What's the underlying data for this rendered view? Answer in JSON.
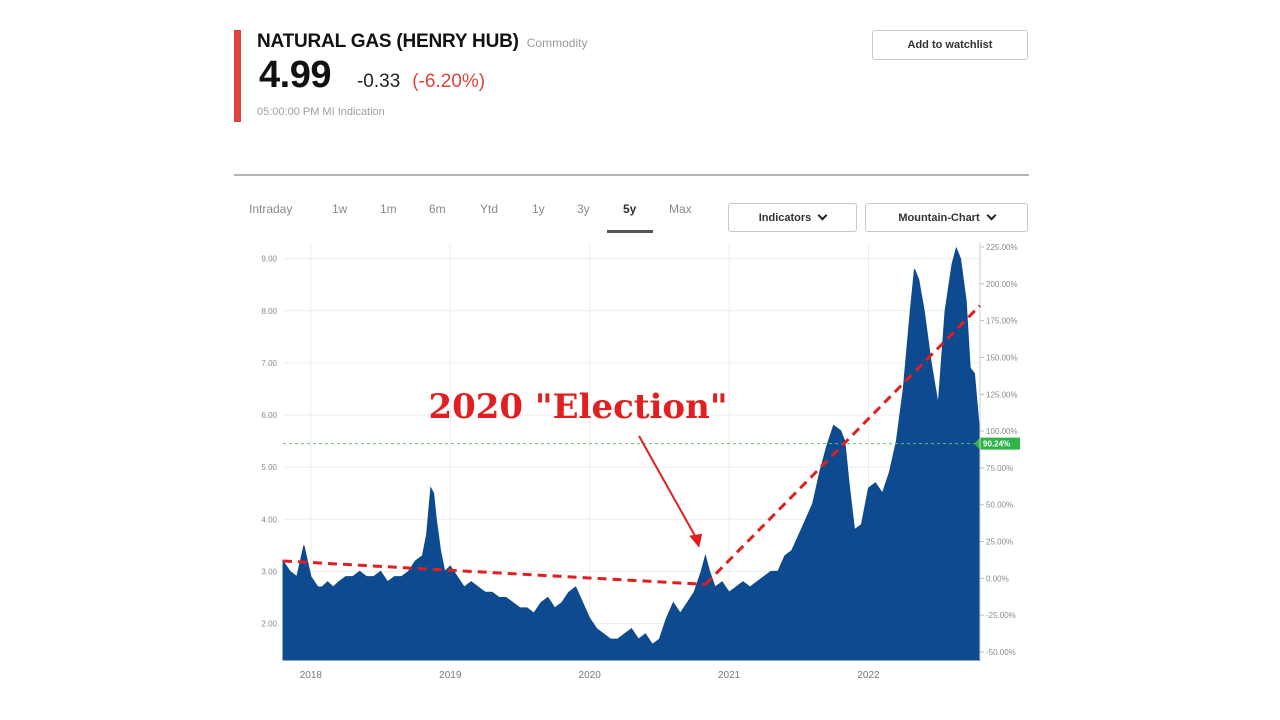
{
  "quote": {
    "title": "NATURAL GAS (HENRY HUB)",
    "category": "Commodity",
    "price": "4.99",
    "change": "-0.33",
    "change_pct": "(-6.20%)",
    "timestamp": "05:00:00 PM  MI Indication"
  },
  "watchlist_label": "Add to watchlist",
  "range_tabs": [
    {
      "label": "Intraday",
      "active": false
    },
    {
      "label": "1w",
      "active": false
    },
    {
      "label": "1m",
      "active": false
    },
    {
      "label": "6m",
      "active": false
    },
    {
      "label": "Ytd",
      "active": false
    },
    {
      "label": "1y",
      "active": false
    },
    {
      "label": "3y",
      "active": false
    },
    {
      "label": "5y",
      "active": true
    },
    {
      "label": "Max",
      "active": false
    }
  ],
  "indicators_label": "Indicators",
  "chart_type_label": "Mountain-Chart",
  "colors": {
    "accent": "#e0433b",
    "area_fill": "#0d4a8f",
    "trend_line": "#e02020",
    "reference_line": "#5fc07a",
    "badge": "#2fb34a"
  },
  "chart_data": {
    "type": "area",
    "title": "",
    "xlabel": "",
    "ylabel": "",
    "x_ticks": [
      "2018",
      "2019",
      "2020",
      "2021",
      "2022"
    ],
    "y_ticks_left": [
      "9.00",
      "8.00",
      "7.00",
      "6.00",
      "5.00",
      "4.00",
      "3.00",
      "2.00"
    ],
    "y_ticks_right": [
      "225.00%",
      "200.00%",
      "175.00%",
      "150.00%",
      "125.00%",
      "100.00%",
      "75.00%",
      "50.00%",
      "25.00%",
      "0.00%",
      "-25.00%",
      "-50.00%"
    ],
    "ylim": [
      1.3,
      9.3
    ],
    "grid": true,
    "reference_label": "90.24%",
    "reference_value": 5.45,
    "series": [
      {
        "x": [
          2017.8,
          2017.85,
          2017.9,
          2017.95,
          2018.0,
          2018.05,
          2018.08,
          2018.12,
          2018.16,
          2018.2,
          2018.25,
          2018.3,
          2018.35,
          2018.4,
          2018.45,
          2018.5,
          2018.55,
          2018.6,
          2018.65,
          2018.7,
          2018.75,
          2018.8,
          2018.83,
          2018.86,
          2018.88,
          2018.9,
          2018.93,
          2018.96,
          2019.0,
          2019.05,
          2019.1,
          2019.15,
          2019.2,
          2019.25,
          2019.3,
          2019.35,
          2019.4,
          2019.45,
          2019.5,
          2019.55,
          2019.6,
          2019.65,
          2019.7,
          2019.75,
          2019.8,
          2019.85,
          2019.9,
          2019.95,
          2020.0,
          2020.05,
          2020.1,
          2020.15,
          2020.2,
          2020.25,
          2020.3,
          2020.35,
          2020.4,
          2020.45,
          2020.5,
          2020.55,
          2020.6,
          2020.65,
          2020.7,
          2020.75,
          2020.8,
          2020.83,
          2020.86,
          2020.9,
          2020.95,
          2021.0,
          2021.05,
          2021.1,
          2021.15,
          2021.2,
          2021.25,
          2021.3,
          2021.35,
          2021.4,
          2021.45,
          2021.5,
          2021.55,
          2021.6,
          2021.65,
          2021.7,
          2021.75,
          2021.8,
          2021.83,
          2021.86,
          2021.9,
          2021.95,
          2022.0,
          2022.05,
          2022.1,
          2022.15,
          2022.2,
          2022.25,
          2022.3,
          2022.33,
          2022.36,
          2022.4,
          2022.45,
          2022.5,
          2022.55,
          2022.6,
          2022.63,
          2022.66,
          2022.7,
          2022.73,
          2022.76,
          2022.8
        ],
        "values": [
          3.2,
          3.0,
          2.9,
          3.5,
          2.9,
          2.7,
          2.7,
          2.8,
          2.7,
          2.8,
          2.9,
          2.9,
          3.0,
          2.9,
          2.9,
          3.0,
          2.8,
          2.9,
          2.9,
          3.0,
          3.2,
          3.3,
          3.7,
          4.6,
          4.5,
          4.0,
          3.4,
          3.0,
          3.1,
          2.9,
          2.7,
          2.8,
          2.7,
          2.6,
          2.6,
          2.5,
          2.5,
          2.4,
          2.3,
          2.3,
          2.2,
          2.4,
          2.5,
          2.3,
          2.4,
          2.6,
          2.7,
          2.4,
          2.1,
          1.9,
          1.8,
          1.7,
          1.7,
          1.8,
          1.9,
          1.7,
          1.8,
          1.6,
          1.7,
          2.1,
          2.4,
          2.2,
          2.4,
          2.6,
          3.0,
          3.3,
          3.0,
          2.7,
          2.8,
          2.6,
          2.7,
          2.8,
          2.7,
          2.8,
          2.9,
          3.0,
          3.0,
          3.3,
          3.4,
          3.7,
          4.0,
          4.3,
          4.9,
          5.4,
          5.8,
          5.7,
          5.5,
          4.7,
          3.8,
          3.9,
          4.6,
          4.7,
          4.5,
          4.9,
          5.5,
          6.5,
          8.0,
          8.8,
          8.6,
          8.0,
          7.0,
          6.2,
          8.0,
          8.9,
          9.2,
          9.0,
          8.2,
          6.9,
          6.8,
          5.6
        ]
      }
    ],
    "annotations": [
      {
        "text": "2020 \"Election\"",
        "x": 2020.8,
        "y": 3.3
      }
    ],
    "trend_lines": [
      {
        "from": [
          2017.8,
          3.2
        ],
        "to": [
          2020.83,
          2.75
        ]
      },
      {
        "from": [
          2020.83,
          2.75
        ],
        "to": [
          2022.8,
          8.1
        ]
      }
    ]
  }
}
